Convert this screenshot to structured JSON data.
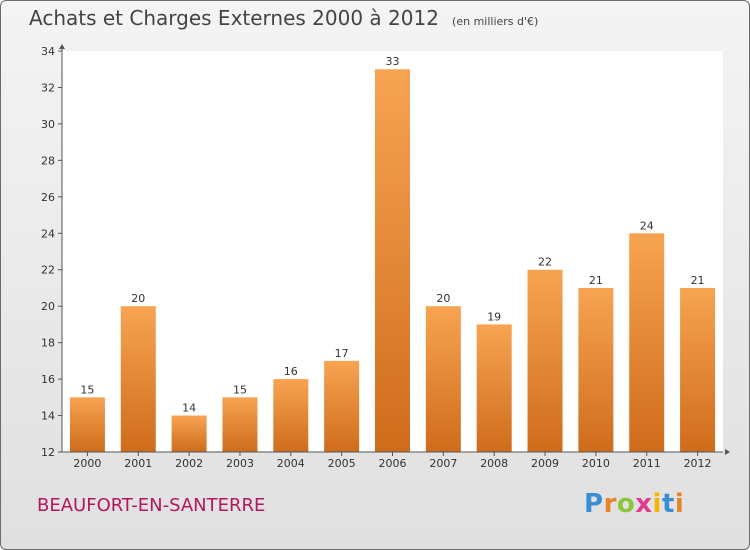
{
  "header": {
    "title": "Achats et Charges Externes 2000 à 2012",
    "unit": "(en milliers d'€)"
  },
  "footer": {
    "commune": "BEAUFORT-EN-SANTERRE",
    "logo_letters": [
      "P",
      "r",
      "o",
      "x",
      "i",
      "t",
      "i"
    ],
    "logo_colors": [
      "#3a8fd4",
      "#e8832a",
      "#8cc63f",
      "#e23a8e",
      "#f5b400",
      "#3a8fd4",
      "#e8832a"
    ]
  },
  "chart_data": {
    "type": "bar",
    "categories": [
      "2000",
      "2001",
      "2002",
      "2003",
      "2004",
      "2005",
      "2006",
      "2007",
      "2008",
      "2009",
      "2010",
      "2011",
      "2012"
    ],
    "values": [
      15,
      20,
      14,
      15,
      16,
      17,
      33,
      20,
      19,
      22,
      21,
      24,
      21
    ],
    "data_labels": [
      "15",
      "20",
      "14",
      "15",
      "16",
      "17",
      "33",
      "20",
      "19",
      "22",
      "21",
      "24",
      "21"
    ],
    "ylim": [
      12,
      34
    ],
    "yticks": [
      "12",
      "14",
      "16",
      "18",
      "20",
      "22",
      "24",
      "26",
      "28",
      "30",
      "32",
      "34"
    ],
    "grid": false,
    "bar_color": "#f0973c"
  }
}
